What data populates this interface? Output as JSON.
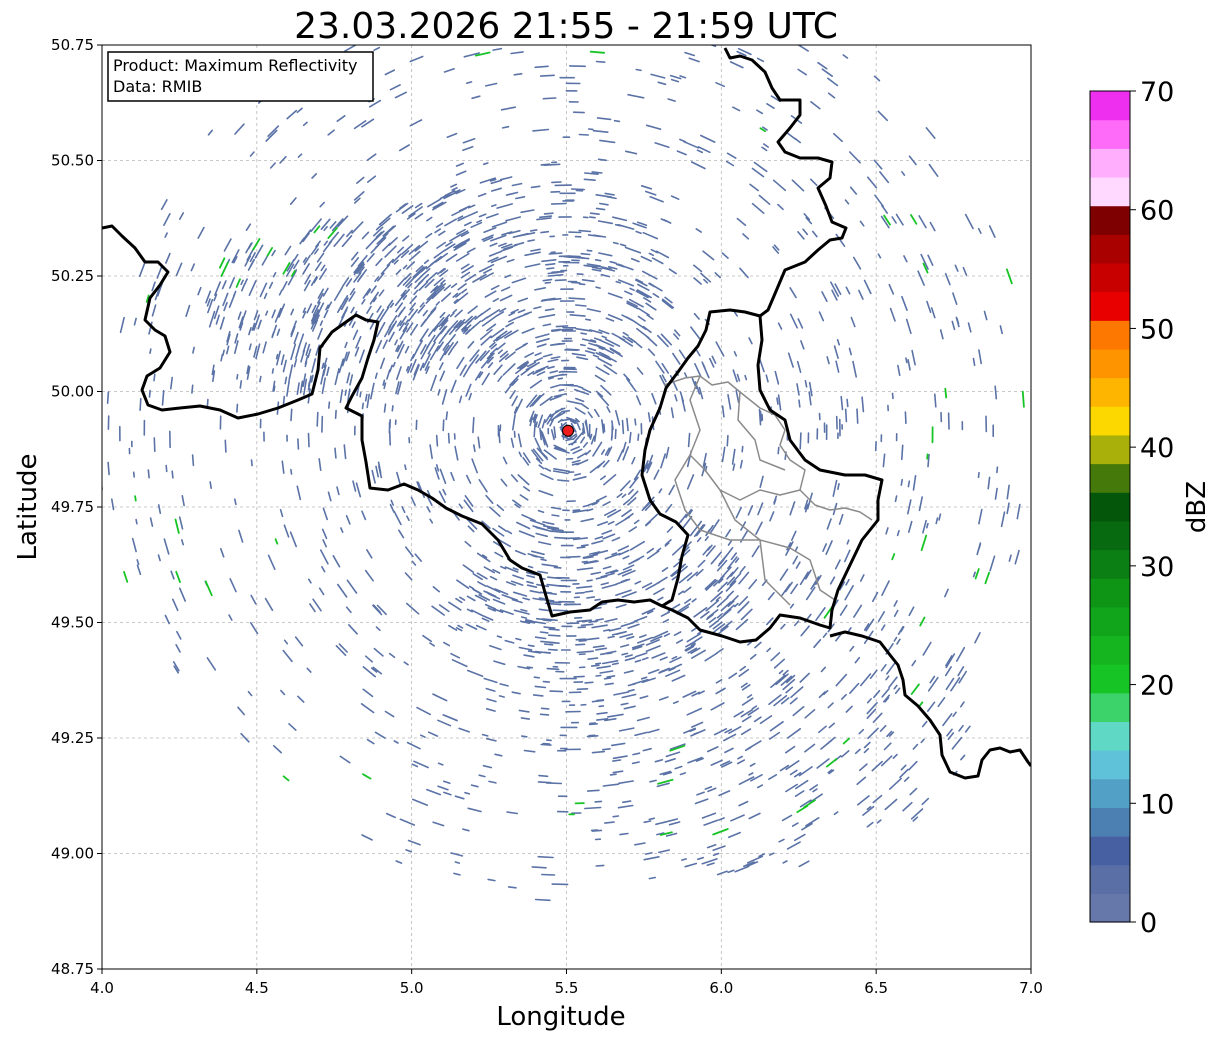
{
  "title": "23.03.2026 21:55 - 21:59 UTC",
  "info_box": {
    "product": "Product: Maximum Reflectivity",
    "data": "Data: RMIB"
  },
  "map": {
    "xlabel": "Longitude",
    "ylabel": "Latitude",
    "lon_range": [
      4.0,
      7.0
    ],
    "lat_range": [
      48.75,
      50.75
    ],
    "x_ticks": [
      "4.0",
      "4.5",
      "5.0",
      "5.5",
      "6.0",
      "6.5",
      "7.0"
    ],
    "y_ticks": [
      "48.75",
      "49.00",
      "49.25",
      "49.50",
      "49.75",
      "50.00",
      "50.25",
      "50.50",
      "50.75"
    ],
    "grid": true,
    "radar_site": {
      "lon": 5.505,
      "lat": 49.915,
      "color": "#ee1c1c"
    },
    "echo_color": "#5a72a6"
  },
  "colorbar": {
    "label": "dBZ",
    "range": [
      0,
      70
    ],
    "ticks": [
      "0",
      "10",
      "20",
      "30",
      "40",
      "50",
      "60",
      "70"
    ],
    "colors": [
      "#6677a9",
      "#5a6fa5",
      "#4660a1",
      "#4c80b2",
      "#52a0c6",
      "#5fc2d9",
      "#5fd8c6",
      "#3cd46a",
      "#17c426",
      "#14b51e",
      "#10a51a",
      "#0e9516",
      "#0b7f13",
      "#086a10",
      "#03560a",
      "#457a0a",
      "#a9b00a",
      "#fdd800",
      "#fdb500",
      "#fd9400",
      "#fd7800",
      "#e80000",
      "#c80000",
      "#a90000",
      "#7e0000",
      "#ffd9ff",
      "#ffaefd",
      "#ff6bf9",
      "#ef2ff0"
    ]
  }
}
